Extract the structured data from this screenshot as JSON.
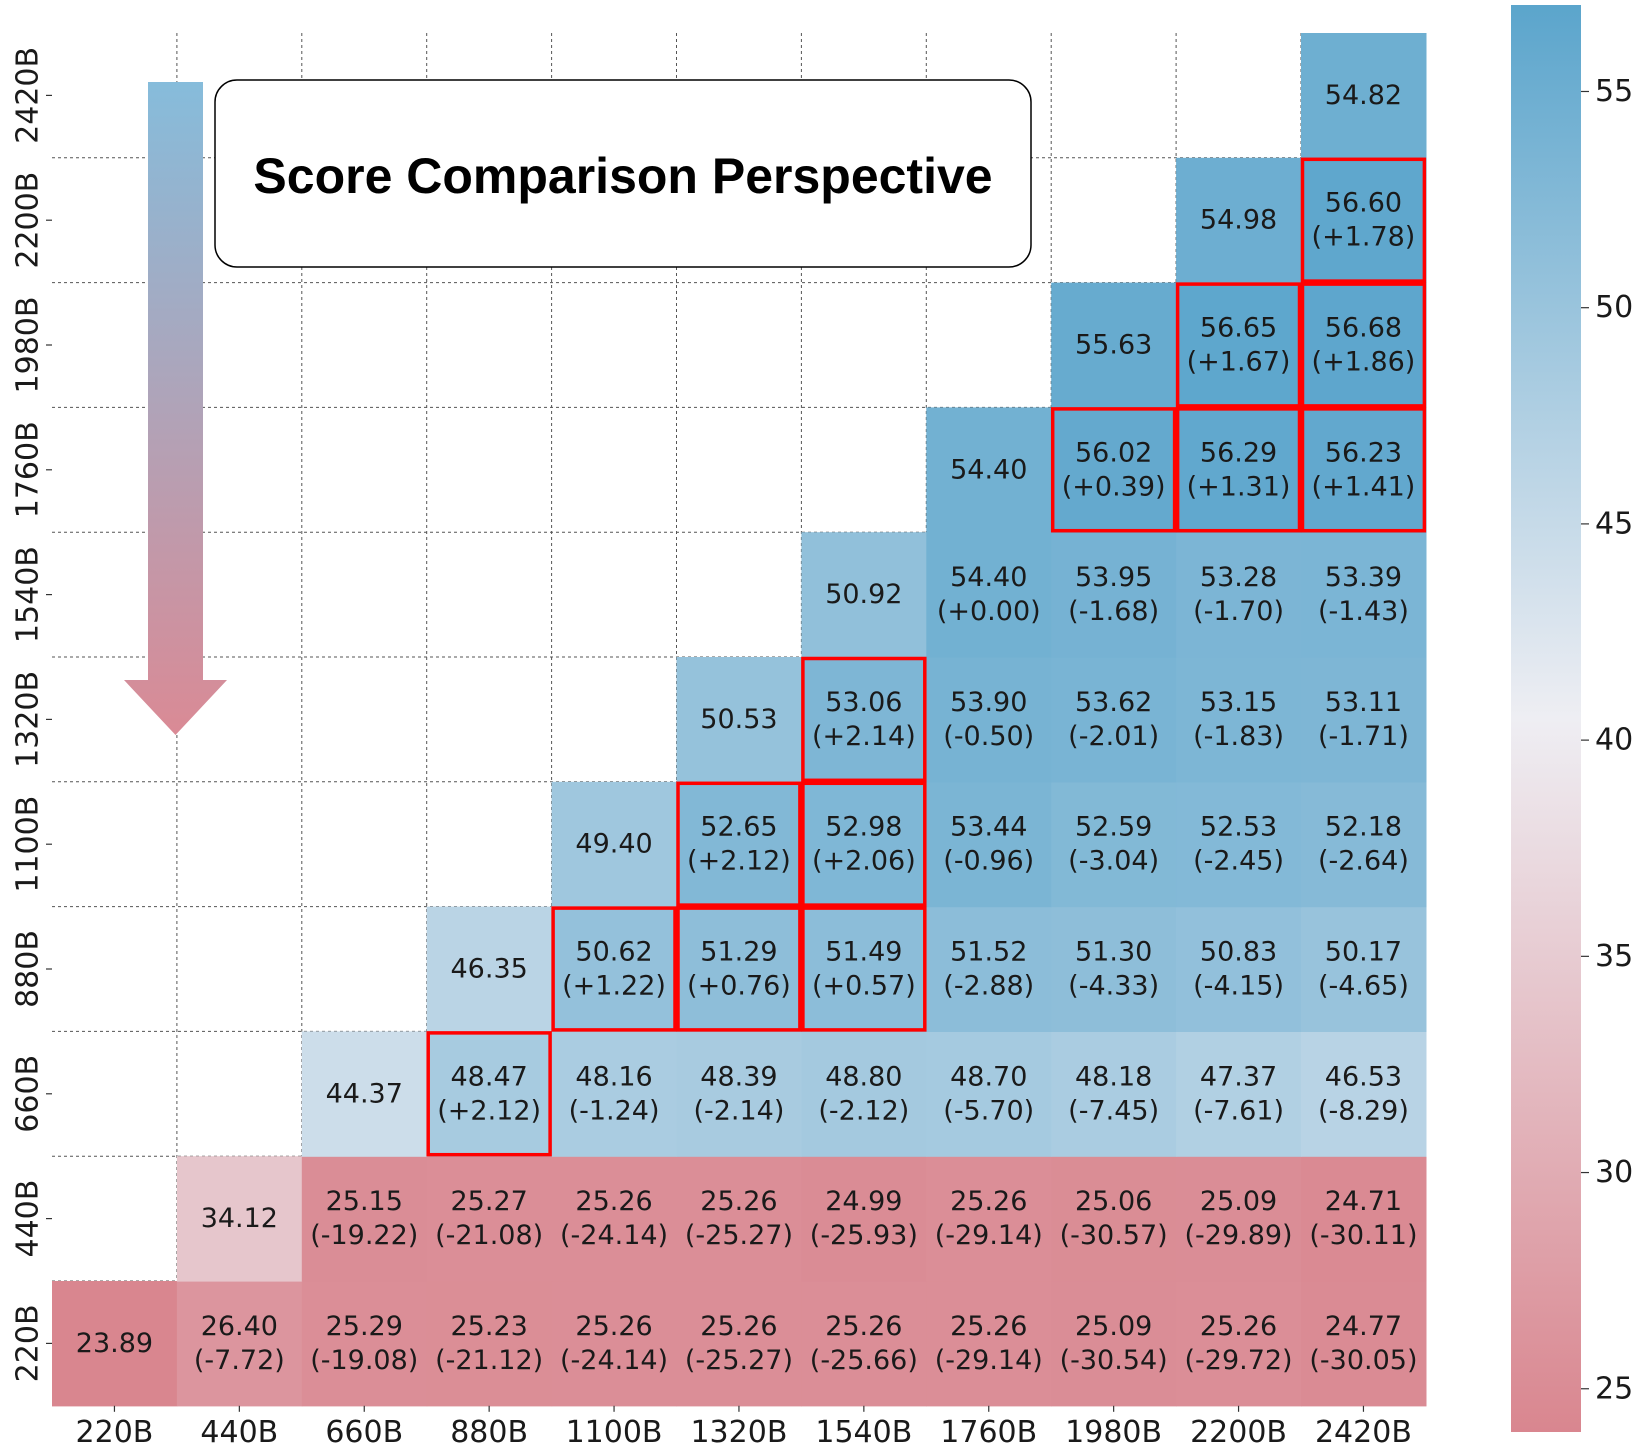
{
  "chart_data": {
    "type": "heatmap",
    "title": "Score Comparison Perspective",
    "xlabel": "",
    "ylabel": "",
    "x_categories": [
      "220B",
      "440B",
      "660B",
      "880B",
      "1100B",
      "1320B",
      "1540B",
      "1760B",
      "1980B",
      "2200B",
      "2420B"
    ],
    "y_categories": [
      "220B",
      "440B",
      "660B",
      "880B",
      "1100B",
      "1320B",
      "1540B",
      "1760B",
      "1980B",
      "2200B",
      "2420B"
    ],
    "colorbar": {
      "min": 24,
      "max": 57,
      "ticks": [
        25,
        30,
        35,
        40,
        45,
        50,
        55
      ],
      "low_color": "#d9868f",
      "mid_color": "#eeeef3",
      "high_color": "#5ba5cc"
    },
    "arrow": {
      "direction": "down",
      "top_color": "#86bcdb",
      "bottom_color": "#da8a95"
    },
    "highlight_color": "#ff0000",
    "cells": [
      {
        "x": "220B",
        "y": "220B",
        "value": 23.89
      },
      {
        "x": "440B",
        "y": "220B",
        "value": 26.4,
        "delta": "(-7.72)"
      },
      {
        "x": "660B",
        "y": "220B",
        "value": 25.29,
        "delta": "(-19.08)"
      },
      {
        "x": "880B",
        "y": "220B",
        "value": 25.23,
        "delta": "(-21.12)"
      },
      {
        "x": "1100B",
        "y": "220B",
        "value": 25.26,
        "delta": "(-24.14)"
      },
      {
        "x": "1320B",
        "y": "220B",
        "value": 25.26,
        "delta": "(-25.27)"
      },
      {
        "x": "1540B",
        "y": "220B",
        "value": 25.26,
        "delta": "(-25.66)"
      },
      {
        "x": "1760B",
        "y": "220B",
        "value": 25.26,
        "delta": "(-29.14)"
      },
      {
        "x": "1980B",
        "y": "220B",
        "value": 25.09,
        "delta": "(-30.54)"
      },
      {
        "x": "2200B",
        "y": "220B",
        "value": 25.26,
        "delta": "(-29.72)"
      },
      {
        "x": "2420B",
        "y": "220B",
        "value": 24.77,
        "delta": "(-30.05)"
      },
      {
        "x": "440B",
        "y": "440B",
        "value": 34.12
      },
      {
        "x": "660B",
        "y": "440B",
        "value": 25.15,
        "delta": "(-19.22)"
      },
      {
        "x": "880B",
        "y": "440B",
        "value": 25.27,
        "delta": "(-21.08)"
      },
      {
        "x": "1100B",
        "y": "440B",
        "value": 25.26,
        "delta": "(-24.14)"
      },
      {
        "x": "1320B",
        "y": "440B",
        "value": 25.26,
        "delta": "(-25.27)"
      },
      {
        "x": "1540B",
        "y": "440B",
        "value": 24.99,
        "delta": "(-25.93)"
      },
      {
        "x": "1760B",
        "y": "440B",
        "value": 25.26,
        "delta": "(-29.14)"
      },
      {
        "x": "1980B",
        "y": "440B",
        "value": 25.06,
        "delta": "(-30.57)"
      },
      {
        "x": "2200B",
        "y": "440B",
        "value": 25.09,
        "delta": "(-29.89)"
      },
      {
        "x": "2420B",
        "y": "440B",
        "value": 24.71,
        "delta": "(-30.11)"
      },
      {
        "x": "660B",
        "y": "660B",
        "value": 44.37
      },
      {
        "x": "880B",
        "y": "660B",
        "value": 48.47,
        "delta": "(+2.12)",
        "highlight": true
      },
      {
        "x": "1100B",
        "y": "660B",
        "value": 48.16,
        "delta": "(-1.24)"
      },
      {
        "x": "1320B",
        "y": "660B",
        "value": 48.39,
        "delta": "(-2.14)"
      },
      {
        "x": "1540B",
        "y": "660B",
        "value": 48.8,
        "delta": "(-2.12)"
      },
      {
        "x": "1760B",
        "y": "660B",
        "value": 48.7,
        "delta": "(-5.70)"
      },
      {
        "x": "1980B",
        "y": "660B",
        "value": 48.18,
        "delta": "(-7.45)"
      },
      {
        "x": "2200B",
        "y": "660B",
        "value": 47.37,
        "delta": "(-7.61)"
      },
      {
        "x": "2420B",
        "y": "660B",
        "value": 46.53,
        "delta": "(-8.29)"
      },
      {
        "x": "880B",
        "y": "880B",
        "value": 46.35
      },
      {
        "x": "1100B",
        "y": "880B",
        "value": 50.62,
        "delta": "(+1.22)",
        "highlight": true
      },
      {
        "x": "1320B",
        "y": "880B",
        "value": 51.29,
        "delta": "(+0.76)",
        "highlight": true
      },
      {
        "x": "1540B",
        "y": "880B",
        "value": 51.49,
        "delta": "(+0.57)",
        "highlight": true
      },
      {
        "x": "1760B",
        "y": "880B",
        "value": 51.52,
        "delta": "(-2.88)"
      },
      {
        "x": "1980B",
        "y": "880B",
        "value": 51.3,
        "delta": "(-4.33)"
      },
      {
        "x": "2200B",
        "y": "880B",
        "value": 50.83,
        "delta": "(-4.15)"
      },
      {
        "x": "2420B",
        "y": "880B",
        "value": 50.17,
        "delta": "(-4.65)"
      },
      {
        "x": "1100B",
        "y": "1100B",
        "value": 49.4
      },
      {
        "x": "1320B",
        "y": "1100B",
        "value": 52.65,
        "delta": "(+2.12)",
        "highlight": true
      },
      {
        "x": "1540B",
        "y": "1100B",
        "value": 52.98,
        "delta": "(+2.06)",
        "highlight": true
      },
      {
        "x": "1760B",
        "y": "1100B",
        "value": 53.44,
        "delta": "(-0.96)"
      },
      {
        "x": "1980B",
        "y": "1100B",
        "value": 52.59,
        "delta": "(-3.04)"
      },
      {
        "x": "2200B",
        "y": "1100B",
        "value": 52.53,
        "delta": "(-2.45)"
      },
      {
        "x": "2420B",
        "y": "1100B",
        "value": 52.18,
        "delta": "(-2.64)"
      },
      {
        "x": "1320B",
        "y": "1320B",
        "value": 50.53
      },
      {
        "x": "1540B",
        "y": "1320B",
        "value": 53.06,
        "delta": "(+2.14)",
        "highlight": true
      },
      {
        "x": "1760B",
        "y": "1320B",
        "value": 53.9,
        "delta": "(-0.50)"
      },
      {
        "x": "1980B",
        "y": "1320B",
        "value": 53.62,
        "delta": "(-2.01)"
      },
      {
        "x": "2200B",
        "y": "1320B",
        "value": 53.15,
        "delta": "(-1.83)"
      },
      {
        "x": "2420B",
        "y": "1320B",
        "value": 53.11,
        "delta": "(-1.71)"
      },
      {
        "x": "1540B",
        "y": "1540B",
        "value": 50.92
      },
      {
        "x": "1760B",
        "y": "1540B",
        "value": 54.4,
        "delta": "(+0.00)"
      },
      {
        "x": "1980B",
        "y": "1540B",
        "value": 53.95,
        "delta": "(-1.68)"
      },
      {
        "x": "2200B",
        "y": "1540B",
        "value": 53.28,
        "delta": "(-1.70)"
      },
      {
        "x": "2420B",
        "y": "1540B",
        "value": 53.39,
        "delta": "(-1.43)"
      },
      {
        "x": "1760B",
        "y": "1760B",
        "value": 54.4
      },
      {
        "x": "1980B",
        "y": "1760B",
        "value": 56.02,
        "delta": "(+0.39)",
        "highlight": true
      },
      {
        "x": "2200B",
        "y": "1760B",
        "value": 56.29,
        "delta": "(+1.31)",
        "highlight": true
      },
      {
        "x": "2420B",
        "y": "1760B",
        "value": 56.23,
        "delta": "(+1.41)",
        "highlight": true
      },
      {
        "x": "1980B",
        "y": "1980B",
        "value": 55.63
      },
      {
        "x": "2200B",
        "y": "1980B",
        "value": 56.65,
        "delta": "(+1.67)",
        "highlight": true
      },
      {
        "x": "2420B",
        "y": "1980B",
        "value": 56.68,
        "delta": "(+1.86)",
        "highlight": true
      },
      {
        "x": "2200B",
        "y": "2200B",
        "value": 54.98
      },
      {
        "x": "2420B",
        "y": "2200B",
        "value": 56.6,
        "delta": "(+1.78)",
        "highlight": true
      },
      {
        "x": "2420B",
        "y": "2420B",
        "value": 54.82
      }
    ]
  }
}
